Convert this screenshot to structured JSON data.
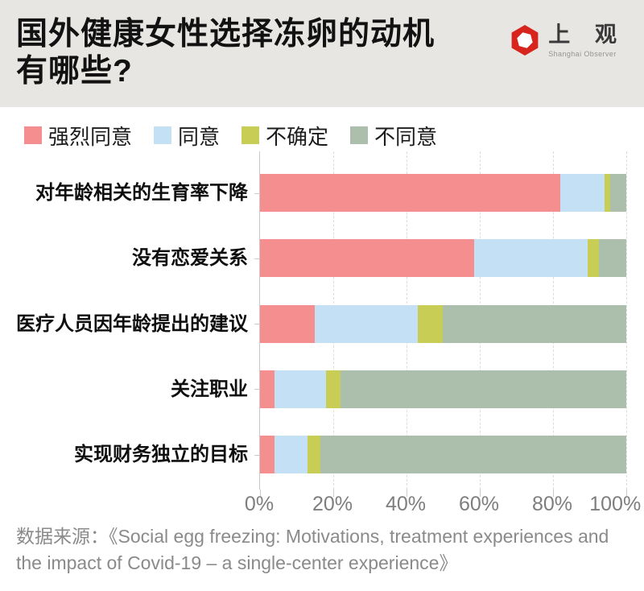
{
  "header": {
    "title_line1": "国外健康女性选择冻卵的动机",
    "title_line2": "有哪些?",
    "logo": {
      "name_cn": "上 观",
      "name_en": "Shanghai Observer",
      "brand_color": "#d7251d"
    }
  },
  "chart_data": {
    "type": "bar",
    "orientation": "horizontal",
    "stacked": true,
    "unit": "percent",
    "title": "国外健康女性选择冻卵的动机有哪些?",
    "categories": [
      "对年龄相关的生育率下降",
      "没有恋爱关系",
      "医疗人员因年龄提出的建议",
      "关注职业",
      "实现财务独立的目标"
    ],
    "series": [
      {
        "name": "强烈同意",
        "color": "#f58f8f",
        "values": [
          82,
          58.5,
          15,
          4,
          4
        ]
      },
      {
        "name": "同意",
        "color": "#c4e0f4",
        "values": [
          12,
          31,
          28,
          14,
          9
        ]
      },
      {
        "name": "不确定",
        "color": "#c8ce55",
        "values": [
          1.5,
          3,
          7,
          4,
          3.5
        ]
      },
      {
        "name": "不同意",
        "color": "#acbfad",
        "values": [
          4.5,
          7.5,
          50,
          78,
          83.5
        ]
      }
    ],
    "x_ticks": [
      "0%",
      "20%",
      "40%",
      "60%",
      "80%",
      "100%"
    ],
    "xlim": [
      0,
      100
    ],
    "legend_position": "top",
    "grid": "dashed-vertical"
  },
  "source": {
    "text": "数据来源：《Social egg freezing: Motivations, treatment experiences and the impact of Covid-19 – a single-center experience》"
  }
}
